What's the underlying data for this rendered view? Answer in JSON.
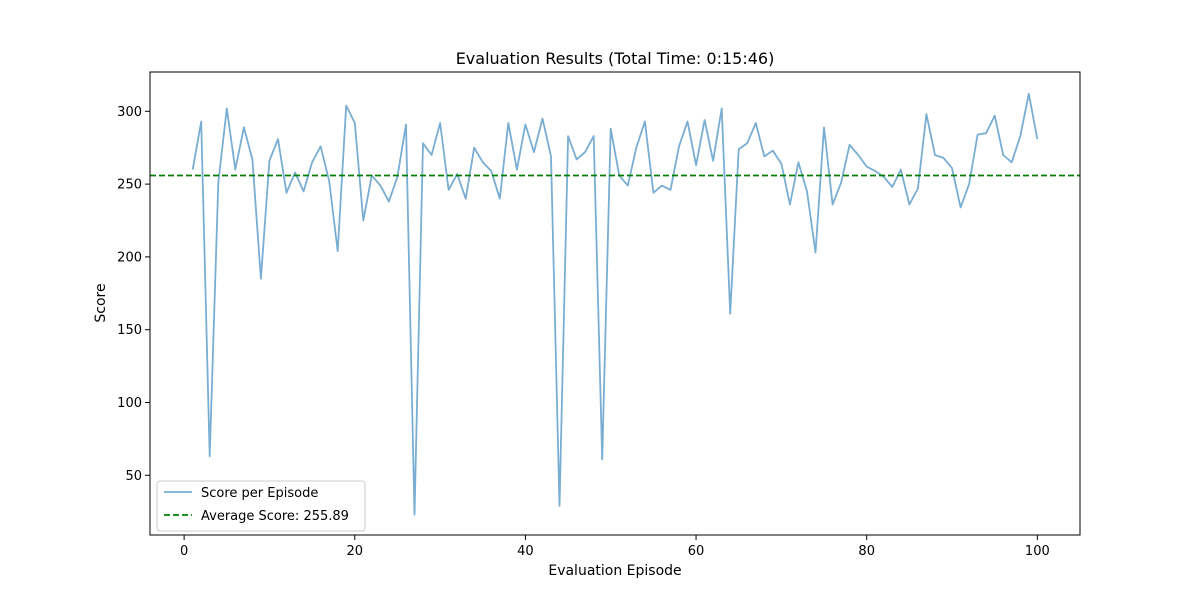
{
  "chart_data": {
    "type": "line",
    "title": "Evaluation Results (Total Time: 0:15:46)",
    "xlabel": "Evaluation Episode",
    "ylabel": "Score",
    "xlim": [
      -4,
      105
    ],
    "ylim": [
      9,
      327
    ],
    "xticks": [
      0,
      20,
      40,
      60,
      80,
      100
    ],
    "yticks": [
      50,
      100,
      150,
      200,
      250,
      300
    ],
    "grid": false,
    "legend": "lower-left",
    "series": [
      {
        "name": "Score per Episode",
        "color": "#1f77b4",
        "x": [
          1,
          2,
          3,
          4,
          5,
          6,
          7,
          8,
          9,
          10,
          11,
          12,
          13,
          14,
          15,
          16,
          17,
          18,
          19,
          20,
          21,
          22,
          23,
          24,
          25,
          26,
          27,
          28,
          29,
          30,
          31,
          32,
          33,
          34,
          35,
          36,
          37,
          38,
          39,
          40,
          41,
          42,
          43,
          44,
          45,
          46,
          47,
          48,
          49,
          50,
          51,
          52,
          53,
          54,
          55,
          56,
          57,
          58,
          59,
          60,
          61,
          62,
          63,
          64,
          65,
          66,
          67,
          68,
          69,
          70,
          71,
          72,
          73,
          74,
          75,
          76,
          77,
          78,
          79,
          80,
          81,
          82,
          83,
          84,
          85,
          86,
          87,
          88,
          89,
          90,
          91,
          92,
          93,
          94,
          95,
          96,
          97,
          98,
          99,
          100
        ],
        "y": [
          260,
          293,
          63,
          251,
          302,
          260,
          289,
          267,
          185,
          266,
          281,
          244,
          258,
          245,
          265,
          276,
          252,
          204,
          304,
          292,
          225,
          256,
          249,
          238,
          255,
          291,
          23,
          278,
          270,
          292,
          246,
          257,
          240,
          275,
          265,
          259,
          240,
          292,
          260,
          291,
          272,
          295,
          269,
          29,
          283,
          267,
          272,
          283,
          61,
          288,
          256,
          249,
          275,
          293,
          244,
          249,
          246,
          276,
          293,
          263,
          294,
          266,
          302,
          161,
          274,
          278,
          292,
          269,
          273,
          264,
          236,
          265,
          245,
          203,
          289,
          236,
          251,
          277,
          270,
          262,
          259,
          255,
          248,
          260,
          236,
          247,
          298,
          270,
          268,
          261,
          234,
          250,
          284,
          285,
          297,
          270,
          265,
          283,
          312,
          281
        ]
      },
      {
        "name": "Average Score: 255.89",
        "color": "#008000",
        "style": "dashed",
        "value": 255.89
      }
    ]
  }
}
